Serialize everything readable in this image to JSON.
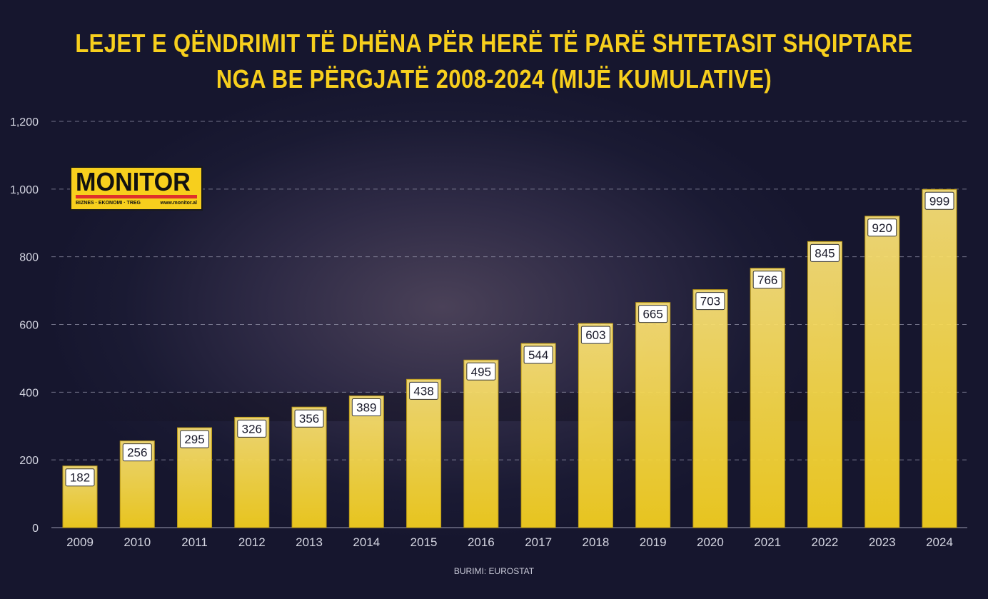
{
  "chart_data": {
    "type": "bar",
    "title": "LEJET E QËNDRIMIT TË DHËNA PËR HERË TË PARË SHTETASIT SHQIPTARE NGA BE PËRGJATË 2008-2024 (MIJË KUMULATIVE)",
    "title_lines": [
      "LEJET E QËNDRIMIT TË DHËNA PËR HERË TË PARË SHTETASIT SHQIPTARE",
      "NGA BE PËRGJATË 2008-2024 (MIJË KUMULATIVE)"
    ],
    "categories": [
      "2009",
      "2010",
      "2011",
      "2012",
      "2013",
      "2014",
      "2015",
      "2016",
      "2017",
      "2018",
      "2019",
      "2020",
      "2021",
      "2022",
      "2023",
      "2024"
    ],
    "values": [
      182,
      256,
      295,
      326,
      356,
      389,
      438,
      495,
      544,
      603,
      665,
      703,
      766,
      845,
      920,
      999
    ],
    "ylim": [
      0,
      1200
    ],
    "yticks": [
      0,
      200,
      400,
      600,
      800,
      1000,
      1200
    ],
    "ytick_labels": [
      "0",
      "200",
      "400",
      "600",
      "800",
      "1,000",
      "1,200"
    ],
    "grid": true,
    "xlabel": "",
    "ylabel": "",
    "bar_color": "#f7d21e",
    "source": "BURIMI: EUROSTAT"
  },
  "logo": {
    "name": "MONITOR",
    "tagline": "BIZNES · EKONOMI · TREG",
    "web": "www.monitor.al"
  }
}
